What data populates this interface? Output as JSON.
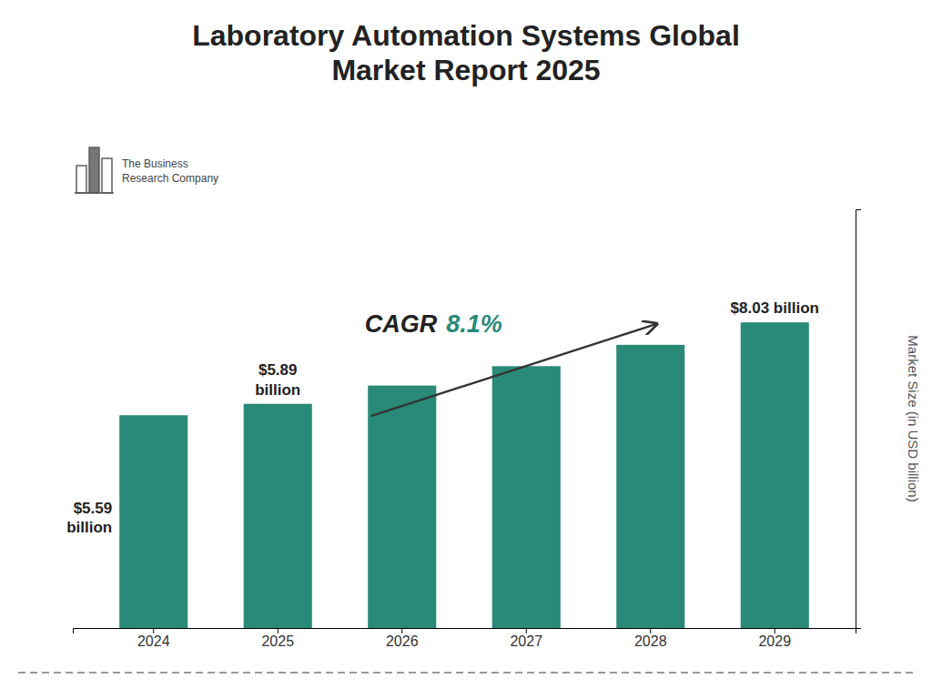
{
  "chart_data": {
    "type": "bar",
    "title": "Laboratory Automation Systems Global\nMarket Report 2025",
    "categories": [
      "2024",
      "2025",
      "2026",
      "2027",
      "2028",
      "2029"
    ],
    "values": [
      5.59,
      5.89,
      6.37,
      6.88,
      7.44,
      8.03
    ],
    "value_labels": [
      "$5.59\nbillion",
      "$5.89\nbillion",
      null,
      null,
      null,
      "$8.03 billion"
    ],
    "color": "#2a8a78",
    "ylabel": "Market Size (in USD billion)",
    "ylim": [
      0,
      11.0
    ],
    "yticks": [],
    "tick_labels": "x",
    "annotations": [
      {
        "text": "CAGR"
      },
      {
        "text": "8.1%",
        "color": "#2a8a78"
      },
      {
        "text": "The Business\nResearch Company"
      }
    ]
  }
}
